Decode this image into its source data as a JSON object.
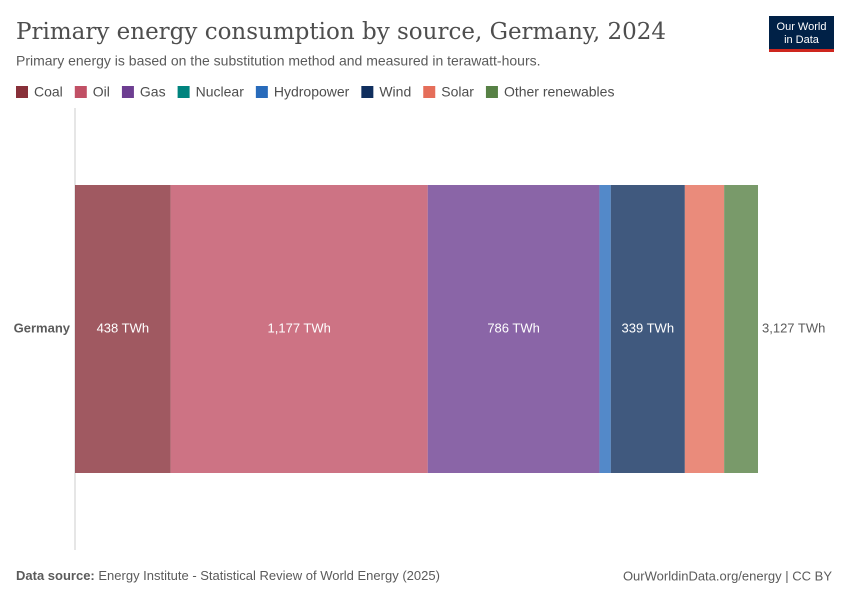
{
  "chart_data": {
    "type": "stacked-bar-horizontal",
    "title": "Primary energy consumption by source, Germany, 2024",
    "subtitle": "Primary energy is based on the substitution method and measured in terawatt-hours.",
    "categories": [
      "Germany"
    ],
    "series": [
      {
        "name": "Coal",
        "color": "#883039",
        "values": [
          438
        ],
        "value_labels": [
          "438 TWh"
        ]
      },
      {
        "name": "Oil",
        "color": "#c15065",
        "values": [
          1177
        ],
        "value_labels": [
          "1,177 TWh"
        ]
      },
      {
        "name": "Gas",
        "color": "#6d3e91",
        "values": [
          786
        ],
        "value_labels": [
          "786 TWh"
        ]
      },
      {
        "name": "Nuclear",
        "color": "#00847e",
        "values": [
          0
        ],
        "value_labels": [
          null
        ]
      },
      {
        "name": "Hydropower",
        "color": "#286bbb",
        "values": [
          52
        ],
        "value_labels": [
          null
        ]
      },
      {
        "name": "Wind",
        "color": "#102f5e",
        "values": [
          339
        ],
        "value_labels": [
          "339 TWh"
        ]
      },
      {
        "name": "Solar",
        "color": "#e56e5a",
        "values": [
          180
        ],
        "value_labels": [
          null
        ]
      },
      {
        "name": "Other renewables",
        "color": "#578145",
        "values": [
          155
        ],
        "value_labels": [
          null
        ]
      }
    ],
    "totals": [
      3127
    ],
    "total_labels": [
      "3,127 TWh"
    ],
    "source_label": "Data source:",
    "source": "Energy Institute - Statistical Review of World Energy (2025)",
    "footer_right": "OurWorldinData.org/energy | CC BY",
    "logo": [
      "Our World",
      "in Data"
    ]
  }
}
